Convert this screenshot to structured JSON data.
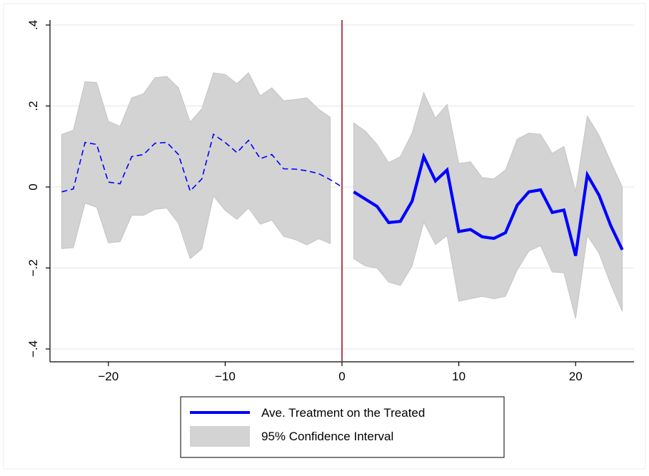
{
  "chart_data": {
    "type": "line",
    "title": "",
    "xlabel": "",
    "ylabel": "",
    "xlim": [
      -25,
      25
    ],
    "ylim": [
      -0.43,
      0.43
    ],
    "x_ticks": [
      {
        "value": -20,
        "label": "−20"
      },
      {
        "value": -10,
        "label": "−10"
      },
      {
        "value": 0,
        "label": "0"
      },
      {
        "value": 10,
        "label": "10"
      },
      {
        "value": 20,
        "label": "20"
      }
    ],
    "y_ticks": [
      {
        "value": -0.4,
        "label": "−.4"
      },
      {
        "value": -0.2,
        "label": "−.2"
      },
      {
        "value": 0,
        "label": "0"
      },
      {
        "value": 0.2,
        "label": ".2"
      },
      {
        "value": 0.4,
        "label": ".4"
      }
    ],
    "grid": true,
    "vertical_line_at": 0,
    "legend_position": "bottom",
    "colors": {
      "line": "#0000ff",
      "ci_fill": "#d3d3d3",
      "ci_edge": "#c4c4c4",
      "vline": "#a0102a",
      "grid": "#e4ecec"
    },
    "series": [
      {
        "name": "Ave. Treatment on the Treated",
        "x": [
          -24,
          -23,
          -22,
          -21,
          -20,
          -19,
          -18,
          -17,
          -16,
          -15,
          -14,
          -13,
          -12,
          -11,
          -10,
          -9,
          -8,
          -7,
          -6,
          -5,
          -4,
          -3,
          -2,
          -1,
          0,
          1,
          2,
          3,
          4,
          5,
          6,
          7,
          8,
          9,
          10,
          11,
          12,
          13,
          14,
          15,
          16,
          17,
          18,
          19,
          20,
          21,
          22,
          23,
          24
        ],
        "values": [
          -0.012,
          -0.005,
          0.11,
          0.105,
          0.012,
          0.008,
          0.075,
          0.08,
          0.108,
          0.11,
          0.08,
          -0.01,
          0.02,
          0.13,
          0.11,
          0.085,
          0.115,
          0.07,
          0.08,
          0.045,
          0.044,
          0.04,
          0.033,
          0.018,
          0.0,
          -0.012,
          -0.03,
          -0.048,
          -0.088,
          -0.085,
          -0.035,
          0.075,
          0.015,
          0.042,
          -0.11,
          -0.105,
          -0.123,
          -0.127,
          -0.113,
          -0.045,
          -0.012,
          -0.007,
          -0.063,
          -0.057,
          -0.17,
          0.03,
          -0.02,
          -0.095,
          -0.155
        ]
      },
      {
        "name": "95% Confidence Interval",
        "x": [
          -24,
          -23,
          -22,
          -21,
          -20,
          -19,
          -18,
          -17,
          -16,
          -15,
          -14,
          -13,
          -12,
          -11,
          -10,
          -9,
          -8,
          -7,
          -6,
          -5,
          -4,
          -3,
          -2,
          -1,
          1,
          2,
          3,
          4,
          5,
          6,
          7,
          8,
          9,
          10,
          11,
          12,
          13,
          14,
          15,
          16,
          17,
          18,
          19,
          20,
          21,
          22,
          23,
          24
        ],
        "upper": [
          0.13,
          0.14,
          0.26,
          0.258,
          0.162,
          0.15,
          0.22,
          0.23,
          0.27,
          0.273,
          0.245,
          0.16,
          0.193,
          0.282,
          0.278,
          0.255,
          0.282,
          0.225,
          0.245,
          0.213,
          0.216,
          0.22,
          0.192,
          0.172,
          0.158,
          0.138,
          0.105,
          0.06,
          0.075,
          0.133,
          0.233,
          0.17,
          0.204,
          0.058,
          0.062,
          0.023,
          0.02,
          0.042,
          0.118,
          0.133,
          0.13,
          0.083,
          0.1,
          -0.012,
          0.175,
          0.128,
          0.063,
          0.0
        ],
        "lower": [
          -0.152,
          -0.15,
          -0.04,
          -0.05,
          -0.138,
          -0.135,
          -0.07,
          -0.07,
          -0.055,
          -0.052,
          -0.09,
          -0.177,
          -0.153,
          -0.022,
          -0.058,
          -0.08,
          -0.052,
          -0.092,
          -0.082,
          -0.122,
          -0.13,
          -0.143,
          -0.128,
          -0.14,
          -0.177,
          -0.195,
          -0.2,
          -0.235,
          -0.243,
          -0.195,
          -0.087,
          -0.142,
          -0.12,
          -0.282,
          -0.276,
          -0.27,
          -0.276,
          -0.27,
          -0.205,
          -0.158,
          -0.145,
          -0.21,
          -0.212,
          -0.325,
          -0.12,
          -0.163,
          -0.24,
          -0.307
        ]
      }
    ]
  }
}
